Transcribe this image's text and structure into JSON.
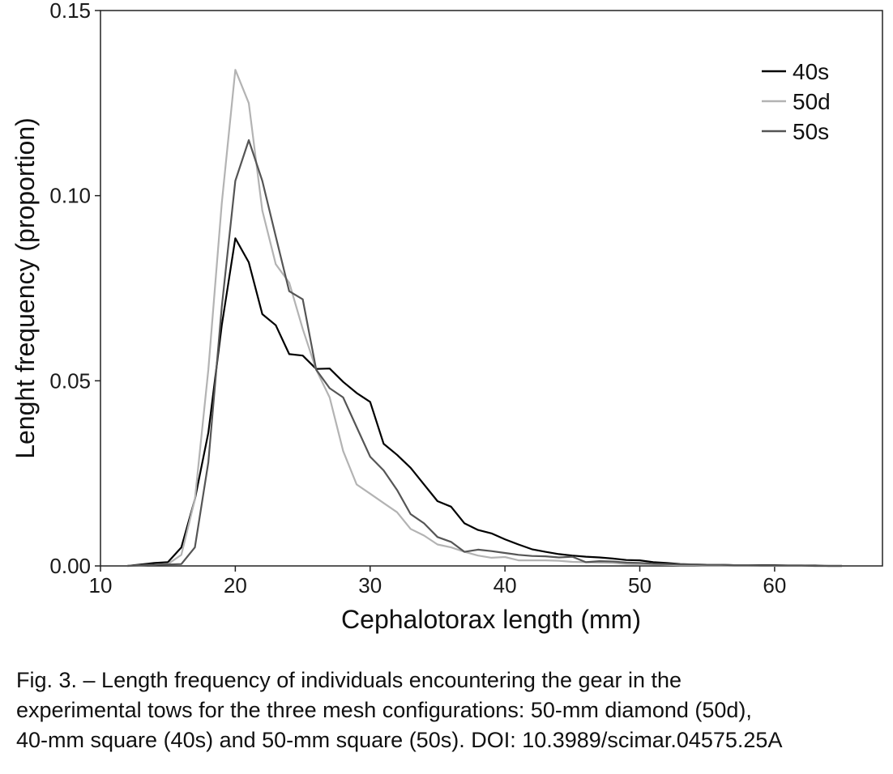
{
  "chart_data": {
    "type": "line",
    "xlabel": "Cephalotorax length (mm)",
    "ylabel": "Lenght frequency (proportion)",
    "xlim": [
      10,
      68
    ],
    "ylim": [
      0,
      0.15
    ],
    "x_ticks": [
      "10",
      "20",
      "30",
      "40",
      "50",
      "60"
    ],
    "y_ticks": [
      "0.00",
      "0.05",
      "0.10",
      "0.15"
    ],
    "legend_position": "top-right",
    "grid": false,
    "series": [
      {
        "name": "40s",
        "color": "#000000",
        "x": [
          12,
          13,
          14,
          15,
          16,
          17,
          18,
          19,
          20,
          21,
          22,
          23,
          24,
          25,
          26,
          27,
          28,
          29,
          30,
          31,
          32,
          33,
          34,
          35,
          36,
          37,
          38,
          39,
          40,
          41,
          42,
          43,
          44,
          45,
          46,
          47,
          48,
          49,
          50,
          51,
          52,
          53,
          54,
          55,
          56,
          57,
          58,
          59,
          60,
          61,
          62,
          63,
          64,
          65
        ],
        "y": [
          0.0,
          0.0004,
          0.0008,
          0.001,
          0.005,
          0.018,
          0.036,
          0.065,
          0.0885,
          0.082,
          0.068,
          0.065,
          0.0572,
          0.0568,
          0.0532,
          0.0533,
          0.0497,
          0.0467,
          0.0443,
          0.033,
          0.03,
          0.0265,
          0.022,
          0.0175,
          0.016,
          0.0115,
          0.0097,
          0.0088,
          0.0072,
          0.0058,
          0.0045,
          0.0038,
          0.0032,
          0.0028,
          0.0025,
          0.0023,
          0.002,
          0.0016,
          0.0015,
          0.001,
          0.0008,
          0.0005,
          0.0004,
          0.0003,
          0.0003,
          0.0002,
          0.0002,
          0.0002,
          0.0002,
          0.0001,
          0.0001,
          0.0001,
          0.0,
          0.0
        ]
      },
      {
        "name": "50d",
        "color": "#b3b3b3",
        "x": [
          12,
          13,
          14,
          15,
          16,
          17,
          18,
          19,
          20,
          21,
          22,
          23,
          24,
          25,
          26,
          27,
          28,
          29,
          30,
          31,
          32,
          33,
          34,
          35,
          36,
          37,
          38,
          39,
          40,
          41,
          42,
          43,
          44,
          45,
          46,
          47,
          48,
          49,
          50,
          51,
          52,
          53,
          54,
          55,
          56,
          57,
          58,
          59,
          60,
          61,
          62,
          63,
          64,
          65
        ],
        "y": [
          0.0,
          0.0002,
          0.0003,
          0.0005,
          0.003,
          0.018,
          0.053,
          0.098,
          0.134,
          0.125,
          0.096,
          0.0815,
          0.0765,
          0.064,
          0.053,
          0.0455,
          0.031,
          0.022,
          0.0195,
          0.017,
          0.0145,
          0.01,
          0.0082,
          0.0058,
          0.005,
          0.0038,
          0.0028,
          0.0022,
          0.0024,
          0.0015,
          0.0015,
          0.0015,
          0.0014,
          0.0011,
          0.001,
          0.0009,
          0.0008,
          0.0005,
          0.0004,
          0.0004,
          0.0003,
          0.0002,
          0.0002,
          0.0001,
          0.0001,
          0.0001,
          0.0001,
          0.0,
          0.0,
          0.0,
          0.0,
          0.0,
          0.0,
          0.0
        ]
      },
      {
        "name": "50s",
        "color": "#555555",
        "x": [
          12,
          13,
          14,
          15,
          16,
          17,
          18,
          19,
          20,
          21,
          22,
          23,
          24,
          25,
          26,
          27,
          28,
          29,
          30,
          31,
          32,
          33,
          34,
          35,
          36,
          37,
          38,
          39,
          40,
          41,
          42,
          43,
          44,
          45,
          46,
          47,
          48,
          49,
          50,
          51,
          52,
          53,
          54,
          55,
          56,
          57,
          58,
          59,
          60,
          61,
          62,
          63,
          64,
          65
        ],
        "y": [
          0.0,
          0.0002,
          0.0003,
          0.0004,
          0.0005,
          0.005,
          0.028,
          0.07,
          0.104,
          0.115,
          0.104,
          0.089,
          0.0742,
          0.072,
          0.053,
          0.048,
          0.0455,
          0.0375,
          0.0295,
          0.0258,
          0.0205,
          0.014,
          0.0115,
          0.0078,
          0.0065,
          0.0038,
          0.0044,
          0.004,
          0.0035,
          0.003,
          0.0027,
          0.0026,
          0.0023,
          0.0025,
          0.001,
          0.0013,
          0.0012,
          0.0009,
          0.0008,
          0.0006,
          0.0005,
          0.0004,
          0.0004,
          0.0003,
          0.0003,
          0.0002,
          0.0002,
          0.0001,
          0.0001,
          0.0001,
          0.0001,
          0.0,
          0.0,
          0.0
        ]
      }
    ]
  },
  "caption": {
    "line1": "Fig. 3. – Length frequency of individuals encountering the gear in the",
    "line2": "experimental tows for the three mesh configurations: 50-mm diamond (50d),",
    "line3": "40-mm square (40s) and 50-mm square (50s). DOI: 10.3989/scimar.04575.25A"
  }
}
